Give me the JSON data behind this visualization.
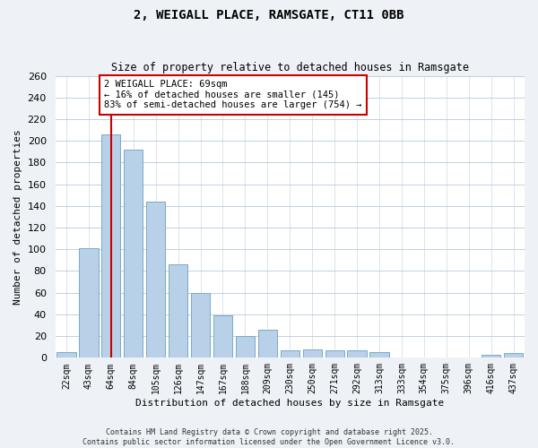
{
  "title": "2, WEIGALL PLACE, RAMSGATE, CT11 0BB",
  "subtitle": "Size of property relative to detached houses in Ramsgate",
  "xlabel": "Distribution of detached houses by size in Ramsgate",
  "ylabel": "Number of detached properties",
  "bar_labels": [
    "22sqm",
    "43sqm",
    "64sqm",
    "84sqm",
    "105sqm",
    "126sqm",
    "147sqm",
    "167sqm",
    "188sqm",
    "209sqm",
    "230sqm",
    "250sqm",
    "271sqm",
    "292sqm",
    "313sqm",
    "333sqm",
    "354sqm",
    "375sqm",
    "396sqm",
    "416sqm",
    "437sqm"
  ],
  "bar_values": [
    5,
    101,
    206,
    192,
    144,
    86,
    60,
    39,
    20,
    26,
    7,
    8,
    7,
    7,
    5,
    0,
    0,
    0,
    0,
    3,
    4
  ],
  "bar_color": "#b8d0e8",
  "bar_edge_color": "#7aaac8",
  "vline_x": 2.5,
  "vline_color": "#cc0000",
  "annotation_title": "2 WEIGALL PLACE: 69sqm",
  "annotation_line1": "← 16% of detached houses are smaller (145)",
  "annotation_line2": "83% of semi-detached houses are larger (754) →",
  "ylim": [
    0,
    260
  ],
  "yticks": [
    0,
    20,
    40,
    60,
    80,
    100,
    120,
    140,
    160,
    180,
    200,
    220,
    240,
    260
  ],
  "footer1": "Contains HM Land Registry data © Crown copyright and database right 2025.",
  "footer2": "Contains public sector information licensed under the Open Government Licence v3.0.",
  "bg_color": "#eef2f7",
  "plot_bg_color": "#ffffff",
  "grid_color": "#c0d0e0"
}
